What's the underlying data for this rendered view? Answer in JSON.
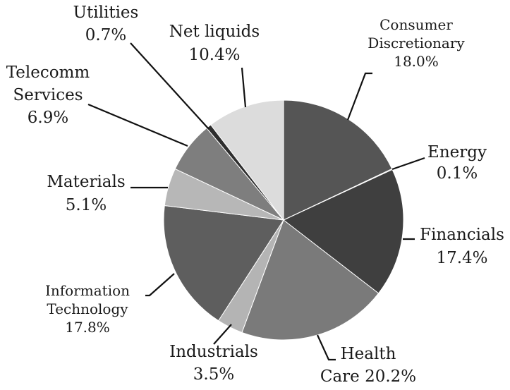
{
  "chart_data": {
    "type": "pie",
    "start_angle_deg": 0,
    "direction": "clockwise",
    "slices": [
      {
        "lines": [
          "Consumer",
          "Discretionary",
          "18.0%"
        ],
        "value": 18.0,
        "color": "#555555"
      },
      {
        "lines": [
          "Energy",
          "0.1%"
        ],
        "value": 0.1,
        "color": "#666666"
      },
      {
        "lines": [
          "Financials",
          "17.4%"
        ],
        "value": 17.4,
        "color": "#3f3f3f"
      },
      {
        "lines": [
          "Health",
          "Care 20.2%"
        ],
        "value": 20.2,
        "color": "#7a7a7a"
      },
      {
        "lines": [
          "Industrials",
          "3.5%"
        ],
        "value": 3.5,
        "color": "#b4b4b4"
      },
      {
        "lines": [
          "Information",
          "Technology",
          "17.8%"
        ],
        "value": 17.8,
        "color": "#5e5e5e"
      },
      {
        "lines": [
          "Materials",
          "5.1%"
        ],
        "value": 5.1,
        "color": "#b7b7b7"
      },
      {
        "lines": [
          "Telecomm",
          "Services",
          "6.9%"
        ],
        "value": 6.9,
        "color": "#7e7e7e"
      },
      {
        "lines": [
          "Utilities",
          "0.7%"
        ],
        "value": 0.7,
        "color": "#2e2e2e"
      },
      {
        "lines": [
          "Net liquids",
          "10.4%"
        ],
        "value": 10.4,
        "color": "#dcdcdc"
      }
    ]
  }
}
